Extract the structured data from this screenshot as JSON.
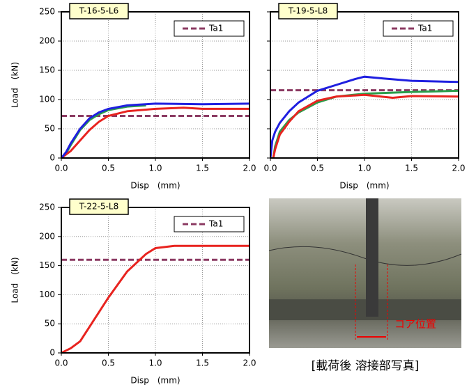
{
  "chart_data": [
    {
      "type": "line",
      "title": "T-16-5-L6",
      "xlabel": "Disp　(mm)",
      "ylabel": "Load　(kN)",
      "xlim": [
        0,
        2
      ],
      "xticks": [
        {
          "value": 0,
          "label": "0.0"
        },
        {
          "value": 0.5,
          "label": "0.5"
        },
        {
          "value": 1,
          "label": "1.0"
        },
        {
          "value": 1.5,
          "label": "1.5"
        },
        {
          "value": 2,
          "label": "2.0"
        }
      ],
      "ylim": [
        0,
        250
      ],
      "yticks": [
        0,
        50,
        100,
        150,
        200,
        250
      ],
      "grid": true,
      "legend": "upper right",
      "series": [
        {
          "name": "Ta1",
          "color": "#8b3a62",
          "dashed": true,
          "x": [
            0,
            2
          ],
          "values": [
            72,
            72
          ]
        },
        {
          "color": "#2a9d4a",
          "x": [
            0,
            0.05,
            0.1,
            0.2,
            0.3,
            0.4,
            0.5,
            0.7,
            0.9
          ],
          "values": [
            0,
            8,
            22,
            48,
            65,
            75,
            82,
            88,
            90
          ]
        },
        {
          "color": "#e8231f",
          "x": [
            0,
            0.1,
            0.2,
            0.3,
            0.4,
            0.5,
            0.7,
            1.0,
            1.3,
            1.5,
            2.0
          ],
          "values": [
            0,
            12,
            30,
            48,
            62,
            72,
            80,
            84,
            86,
            84,
            84
          ]
        },
        {
          "color": "#1f1fe0",
          "x": [
            0,
            0.05,
            0.1,
            0.2,
            0.3,
            0.4,
            0.5,
            0.7,
            1.0,
            1.5,
            2.0
          ],
          "values": [
            0,
            10,
            25,
            50,
            68,
            78,
            84,
            90,
            93,
            92,
            93
          ]
        }
      ]
    },
    {
      "type": "line",
      "title": "T-19-5-L8",
      "xlabel": "Disp　(mm)",
      "xlim": [
        0,
        2
      ],
      "xticks": [
        {
          "value": 0,
          "label": "0.0"
        },
        {
          "value": 0.5,
          "label": "0.5"
        },
        {
          "value": 1,
          "label": "1.0"
        },
        {
          "value": 1.5,
          "label": "1.5"
        },
        {
          "value": 2,
          "label": "2.0"
        }
      ],
      "ylim": [
        0,
        250
      ],
      "yticks": [
        0,
        50,
        100,
        150,
        200,
        250
      ],
      "y_tick_labels": false,
      "grid": true,
      "legend": "upper right",
      "series": [
        {
          "name": "Ta1",
          "color": "#8b3a62",
          "dashed": true,
          "x": [
            0,
            2
          ],
          "values": [
            116,
            116
          ]
        },
        {
          "color": "#2a9d4a",
          "x": [
            0.03,
            0.05,
            0.1,
            0.2,
            0.3,
            0.5,
            0.7,
            1.0,
            1.5,
            2.0
          ],
          "values": [
            0,
            20,
            45,
            65,
            78,
            95,
            105,
            110,
            113,
            115
          ]
        },
        {
          "color": "#e8231f",
          "x": [
            0.03,
            0.05,
            0.1,
            0.2,
            0.3,
            0.5,
            0.7,
            1.0,
            1.3,
            1.5,
            2.0
          ],
          "values": [
            0,
            15,
            40,
            62,
            80,
            98,
            105,
            108,
            103,
            106,
            105
          ]
        },
        {
          "color": "#1f1fe0",
          "x": [
            0,
            0.02,
            0.05,
            0.1,
            0.2,
            0.3,
            0.5,
            0.7,
            0.9,
            1.0,
            1.2,
            1.5,
            2.0
          ],
          "values": [
            0,
            30,
            45,
            60,
            80,
            95,
            115,
            125,
            135,
            139,
            136,
            132,
            130
          ]
        }
      ]
    },
    {
      "type": "line",
      "title": "T-22-5-L8",
      "xlabel": "Disp　(mm)",
      "ylabel": "Load　(kN)",
      "xlim": [
        0,
        2
      ],
      "xticks": [
        {
          "value": 0,
          "label": "0.0"
        },
        {
          "value": 0.5,
          "label": "0.5"
        },
        {
          "value": 1,
          "label": "1.0"
        },
        {
          "value": 1.5,
          "label": "1.5"
        },
        {
          "value": 2,
          "label": "2.0"
        }
      ],
      "ylim": [
        0,
        250
      ],
      "yticks": [
        0,
        50,
        100,
        150,
        200,
        250
      ],
      "grid": true,
      "legend": "upper right",
      "series": [
        {
          "name": "Ta1",
          "color": "#8b3a62",
          "dashed": true,
          "x": [
            0,
            2
          ],
          "values": [
            160,
            160
          ]
        },
        {
          "color": "#e8231f",
          "x": [
            0,
            0.1,
            0.2,
            0.3,
            0.5,
            0.7,
            0.9,
            1.0,
            1.2,
            1.5,
            2.0
          ],
          "values": [
            0,
            8,
            20,
            45,
            95,
            140,
            170,
            180,
            184,
            184,
            184
          ]
        }
      ]
    }
  ],
  "photo": {
    "label": "コア位置",
    "caption": "[載荷後 溶接部写真]"
  }
}
